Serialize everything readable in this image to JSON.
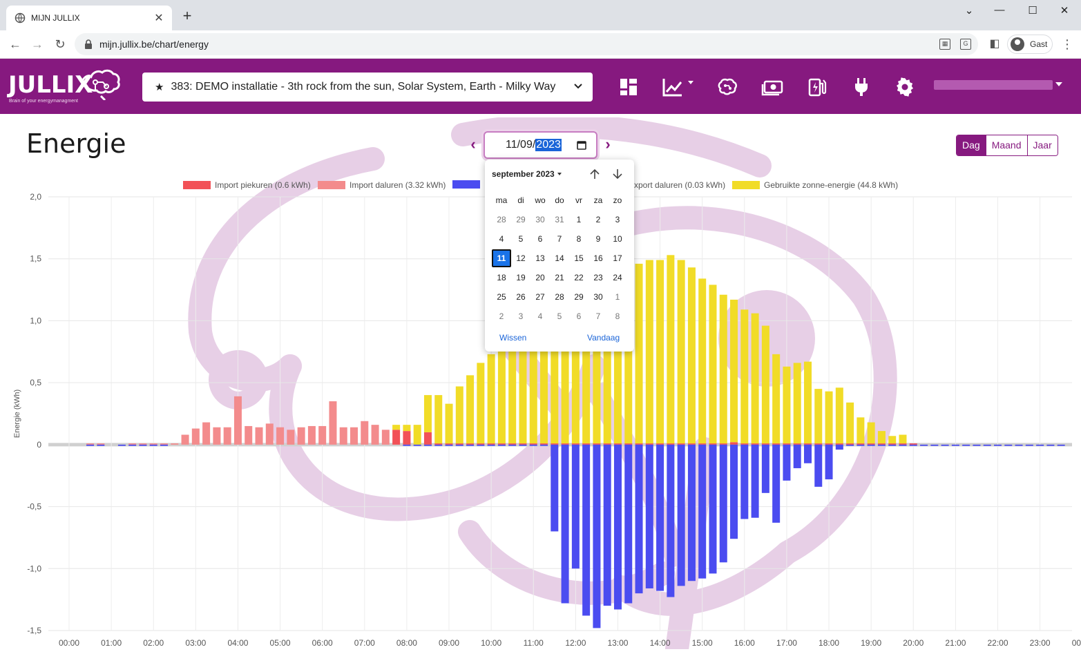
{
  "browser": {
    "tab_title": "MIJN JULLIX",
    "url": "mijn.jullix.be/chart/energy",
    "profile_label": "Gast"
  },
  "app": {
    "logo_text": "JULLIX",
    "logo_tagline": "Brain of your energymanagment",
    "installation": "383: DEMO installatie - 3th rock from the sun, Solar System, Earth - Milky Way",
    "icons": [
      "dashboard-icon",
      "chart-icon",
      "brain-icon",
      "money-icon",
      "ev-charger-icon",
      "plug-icon",
      "gear-icon"
    ]
  },
  "page": {
    "title": "Energie",
    "date_prefix": "11/09/",
    "date_year": "2023",
    "period_buttons": [
      "Dag",
      "Maand",
      "Jaar"
    ],
    "active_period": "Dag"
  },
  "datepicker": {
    "month_label": "september 2023",
    "weekdays": [
      "ma",
      "di",
      "wo",
      "do",
      "vr",
      "za",
      "zo"
    ],
    "weeks": [
      [
        "28",
        "29",
        "30",
        "31",
        "1",
        "2",
        "3"
      ],
      [
        "4",
        "5",
        "6",
        "7",
        "8",
        "9",
        "10"
      ],
      [
        "11",
        "12",
        "13",
        "14",
        "15",
        "16",
        "17"
      ],
      [
        "18",
        "19",
        "20",
        "21",
        "22",
        "23",
        "24"
      ],
      [
        "25",
        "26",
        "27",
        "28",
        "29",
        "30",
        "1"
      ],
      [
        "2",
        "3",
        "4",
        "5",
        "6",
        "7",
        "8"
      ]
    ],
    "selected_day": "11",
    "clear_label": "Wissen",
    "today_label": "Vandaag"
  },
  "legend": {
    "import_peak": "Import piekuren (0.6 kWh)",
    "import_offpeak": "Import daluren (3.32 kWh)",
    "export_offpeak_partial": "xport daluren (0.03 kWh)",
    "solar_used": "Gebruikte zonne-energie (44.8 kWh)"
  },
  "colors": {
    "brand": "#86197f",
    "import_peak": "#f25157",
    "import_offpeak": "#f38b8c",
    "export": "#4b4cf0",
    "solar": "#f1dc27"
  },
  "chart_data": {
    "type": "bar",
    "ylabel": "Energie (kWh)",
    "ylim": [
      -1.5,
      2.0
    ],
    "yticks": [
      "2,0",
      "1,5",
      "1,0",
      "0,5",
      "0",
      "-0,5",
      "-1,0",
      "-1,5"
    ],
    "xticks": [
      "00:00",
      "01:00",
      "02:00",
      "03:00",
      "04:00",
      "05:00",
      "06:00",
      "07:00",
      "08:00",
      "09:00",
      "10:00",
      "11:00",
      "12:00",
      "13:00",
      "14:00",
      "15:00",
      "16:00",
      "17:00",
      "18:00",
      "19:00",
      "20:00",
      "21:00",
      "22:00",
      "23:00",
      "00:00"
    ],
    "interval_minutes": 15,
    "series": [
      {
        "name": "Import daluren (3.32 kWh)",
        "values": [
          0,
          0,
          0.01,
          0.01,
          0,
          0,
          0.01,
          0.01,
          0.01,
          0.01,
          0.01,
          0.08,
          0.13,
          0.18,
          0.14,
          0.14,
          0.39,
          0.15,
          0.14,
          0.17,
          0.14,
          0.12,
          0.14,
          0.15,
          0.15,
          0.35,
          0.14,
          0.14,
          0.19,
          0.16,
          0.12,
          0,
          0,
          0,
          0,
          0,
          0,
          0,
          0,
          0,
          0,
          0,
          0,
          0,
          0,
          0,
          0,
          0,
          0,
          0,
          0,
          0,
          0,
          0,
          0,
          0,
          0,
          0,
          0,
          0,
          0,
          0,
          0,
          0,
          0,
          0,
          0,
          0,
          0,
          0,
          0,
          0,
          0,
          0,
          0,
          0,
          0,
          0,
          0,
          0,
          0,
          0,
          0,
          0,
          0,
          0,
          0,
          0,
          0,
          0,
          0,
          0,
          0,
          0,
          0,
          0
        ]
      },
      {
        "name": "Import piekuren (0.6 kWh)",
        "values": [
          0,
          0,
          0,
          0,
          0,
          0,
          0,
          0,
          0,
          0,
          0,
          0,
          0,
          0,
          0,
          0,
          0,
          0,
          0,
          0,
          0,
          0,
          0,
          0,
          0,
          0,
          0,
          0,
          0,
          0,
          0,
          0.12,
          0.11,
          0,
          0.1,
          0.01,
          0.01,
          0.01,
          0.01,
          0.01,
          0.01,
          0.01,
          0.01,
          0.01,
          0.01,
          0.01,
          0.01,
          0.01,
          0.01,
          0.01,
          0.01,
          0.01,
          0.01,
          0.01,
          0.01,
          0.01,
          0.01,
          0.01,
          0.01,
          0.01,
          0.01,
          0.01,
          0.01,
          0.02,
          0.01,
          0.01,
          0.01,
          0.01,
          0.01,
          0.01,
          0.01,
          0.01,
          0.01,
          0.01,
          0.01,
          0.01,
          0.01,
          0.01,
          0.01,
          0.01,
          0.01,
          0,
          0,
          0,
          0,
          0,
          0,
          0,
          0,
          0,
          0,
          0,
          0,
          0,
          0,
          0
        ]
      },
      {
        "name": "Gebruikte zonne-energie (44.8 kWh)",
        "values": [
          0,
          0,
          0,
          0,
          0,
          0,
          0,
          0,
          0,
          0,
          0,
          0,
          0,
          0,
          0,
          0,
          0,
          0,
          0,
          0,
          0,
          0,
          0,
          0,
          0,
          0,
          0,
          0,
          0,
          0,
          0,
          0.04,
          0.05,
          0.16,
          0.3,
          0.39,
          0.32,
          0.46,
          0.55,
          0.65,
          0.72,
          0.82,
          0.91,
          1.03,
          1.14,
          1.06,
          1.07,
          1.1,
          1.2,
          1.3,
          1.4,
          1.45,
          1.46,
          1.5,
          1.45,
          1.48,
          1.48,
          1.52,
          1.48,
          1.42,
          1.33,
          1.28,
          1.2,
          1.15,
          1.08,
          1.05,
          0.95,
          0.72,
          0.62,
          0.65,
          0.66,
          0.44,
          0.42,
          0.45,
          0.33,
          0.21,
          0.17,
          0.1,
          0.06,
          0.07,
          0,
          0,
          0,
          0,
          0,
          0,
          0,
          0,
          0,
          0,
          0,
          0,
          0,
          0,
          0,
          0
        ]
      },
      {
        "name": "Export",
        "values": [
          0,
          0,
          -0.01,
          -0.01,
          0,
          -0.01,
          -0.01,
          -0.01,
          -0.01,
          -0.01,
          0,
          0,
          0,
          0,
          0,
          0,
          0,
          0,
          0,
          0,
          0,
          0,
          0,
          0,
          0,
          0,
          0,
          0,
          0,
          0,
          0,
          0,
          -0.01,
          -0.01,
          -0.01,
          -0.01,
          -0.01,
          -0.01,
          -0.01,
          -0.01,
          -0.01,
          -0.01,
          -0.01,
          -0.01,
          -0.01,
          -0.01,
          -0.7,
          -1.28,
          -1.0,
          -1.38,
          -1.48,
          -1.3,
          -1.33,
          -1.28,
          -1.2,
          -1.16,
          -1.18,
          -1.23,
          -1.14,
          -1.1,
          -1.08,
          -1.04,
          -0.95,
          -0.76,
          -0.6,
          -0.59,
          -0.39,
          -0.63,
          -0.29,
          -0.19,
          -0.15,
          -0.34,
          -0.28,
          -0.04,
          -0.01,
          -0.01,
          -0.01,
          -0.01,
          -0.01,
          -0.01,
          -0.01,
          -0.01,
          -0.01,
          -0.01,
          -0.01,
          -0.01,
          -0.01,
          -0.01,
          -0.01,
          -0.01,
          -0.01,
          -0.01,
          -0.01,
          -0.01,
          -0.01,
          0
        ]
      }
    ]
  }
}
